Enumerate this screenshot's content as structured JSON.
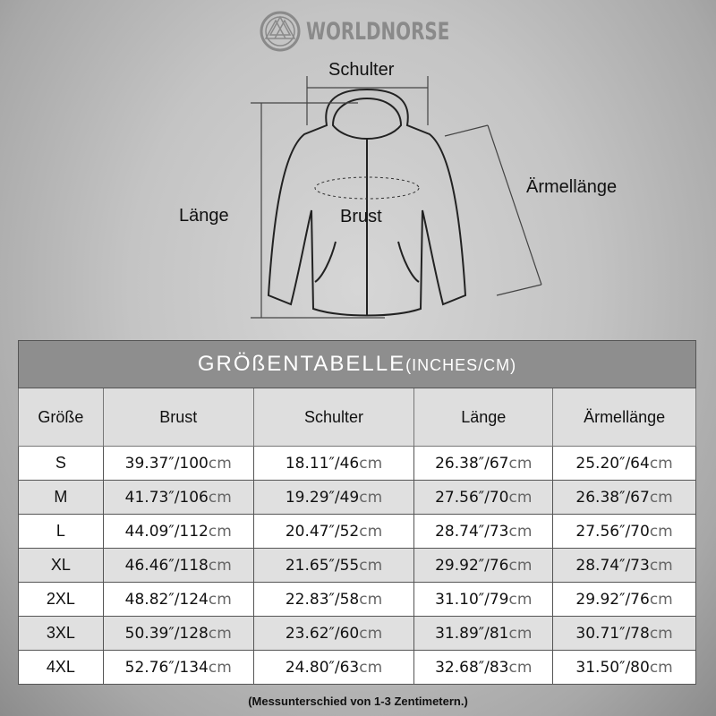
{
  "brand": {
    "name": "WORLDNORSE",
    "icon": "valknut-logo"
  },
  "diagram": {
    "shoulder": "Schulter",
    "length": "Länge",
    "chest": "Brust",
    "sleeve": "Ärmellänge"
  },
  "table": {
    "title": "GRÖßENTABELLE",
    "title_unit": "(INCHES/CM)",
    "headers": [
      "Größe",
      "Brust",
      "Schulter",
      "Länge",
      "Ärmellänge"
    ],
    "unit": "cm",
    "rows": [
      {
        "size": "S",
        "values": [
          "39.37″/100",
          "18.11″/46",
          "26.38″/67",
          "25.20″/64"
        ]
      },
      {
        "size": "M",
        "values": [
          "41.73″/106",
          "19.29″/49",
          "27.56″/70",
          "26.38″/67"
        ]
      },
      {
        "size": "L",
        "values": [
          "44.09″/112",
          "20.47″/52",
          "28.74″/73",
          "27.56″/70"
        ]
      },
      {
        "size": "XL",
        "values": [
          "46.46″/118",
          "21.65″/55",
          "29.92″/76",
          "28.74″/73"
        ]
      },
      {
        "size": "2XL",
        "values": [
          "48.82″/124",
          "22.83″/58",
          "31.10″/79",
          "29.92″/76"
        ]
      },
      {
        "size": "3XL",
        "values": [
          "50.39″/128",
          "23.62″/60",
          "31.89″/81",
          "30.71″/78"
        ]
      },
      {
        "size": "4XL",
        "values": [
          "52.76″/134",
          "24.80″/63",
          "32.68″/83",
          "31.50″/80"
        ]
      }
    ]
  },
  "note": "(Messunterschied von 1-3 Zentimetern.)"
}
